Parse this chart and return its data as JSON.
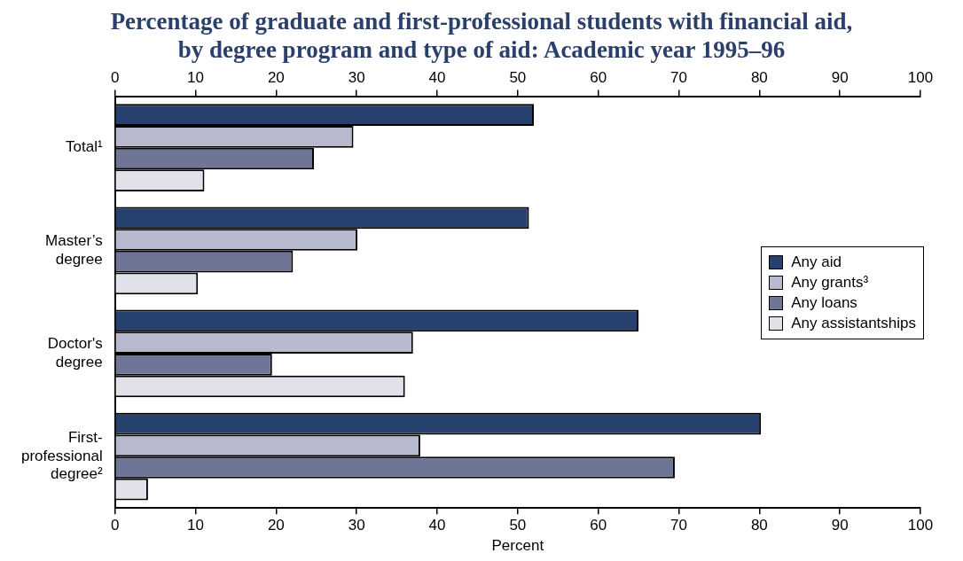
{
  "chart_data": {
    "type": "bar",
    "orientation": "horizontal",
    "title": "Percentage of graduate and first-professional students with financial aid, by degree program and type of aid: Academic year 1995–96",
    "xlabel": "Percent",
    "categories": [
      "Total¹",
      "Master’s degree",
      "Doctor's degree",
      "First-professional degree²"
    ],
    "series": [
      {
        "name": "Any aid",
        "color": "#27416f",
        "values": [
          52.0,
          51.4,
          65.0,
          80.2
        ]
      },
      {
        "name": "Any grants³",
        "color": "#b7bacf",
        "values": [
          29.6,
          30.1,
          37.0,
          37.9
        ]
      },
      {
        "name": "Any loans",
        "color": "#6f7596",
        "values": [
          24.7,
          22.1,
          19.5,
          69.5
        ]
      },
      {
        "name": "Any assistantships",
        "color": "#e1e1ea",
        "values": [
          11.1,
          10.3,
          36.0,
          4.1
        ]
      }
    ],
    "xlim": [
      0,
      100
    ],
    "xticks": [
      0,
      10,
      20,
      30,
      40,
      50,
      60,
      70,
      80,
      90,
      100
    ],
    "x2lim": [
      0,
      100
    ],
    "x2ticks": [
      0,
      10,
      20,
      30,
      40,
      50,
      60,
      70,
      80,
      90,
      100
    ],
    "grid": false,
    "legend": "right"
  }
}
